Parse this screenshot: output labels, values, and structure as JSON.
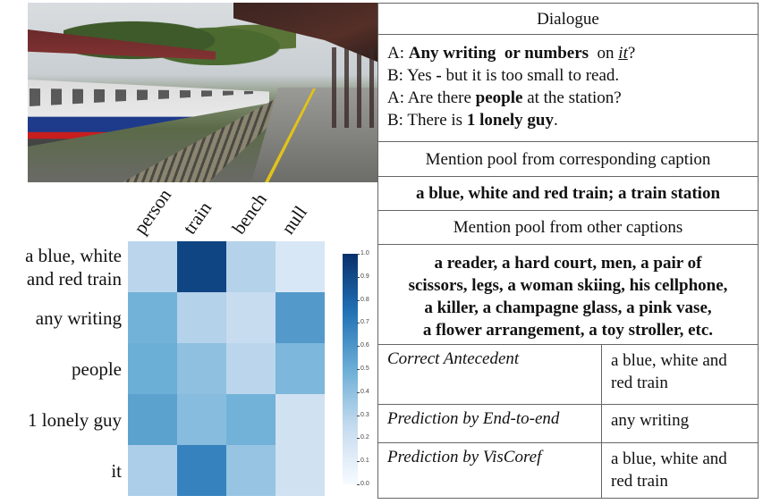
{
  "heatmap": {
    "columns": [
      "person",
      "train",
      "bench",
      "null"
    ],
    "rows": [
      {
        "label": "a blue, white\nand red train",
        "values": [
          0.28,
          0.92,
          0.3,
          0.16
        ]
      },
      {
        "label": "any writing",
        "values": [
          0.48,
          0.3,
          0.24,
          0.58
        ]
      },
      {
        "label": "people",
        "values": [
          0.5,
          0.4,
          0.28,
          0.45
        ]
      },
      {
        "label": "1 lonely guy",
        "values": [
          0.55,
          0.42,
          0.48,
          0.2
        ]
      },
      {
        "label": "it",
        "values": [
          0.32,
          0.68,
          0.38,
          0.2
        ]
      }
    ],
    "colorbar_ticks": [
      "1.0",
      "0.9",
      "0.8",
      "0.7",
      "0.6",
      "0.5",
      "0.4",
      "0.3",
      "0.2",
      "0.1",
      "0.0"
    ]
  },
  "dialogue": {
    "header": "Dialogue",
    "lines": [
      {
        "speaker": "A:",
        "html": "<b>Any writing</b>&nbsp; <b>or numbers</b>&nbsp; on <i><u>it</u></i>?"
      },
      {
        "speaker": "B:",
        "html": "Yes <b>-</b> but it is too small to read."
      },
      {
        "speaker": "A:",
        "html": "Are there <b>people</b> at the station?"
      },
      {
        "speaker": "B:",
        "html": "There is <b>1 lonely guy</b>."
      }
    ]
  },
  "caption_pool": {
    "header": "Mention pool from corresponding caption",
    "text": "a blue, white and red train; a train station"
  },
  "other_pool": {
    "header": "Mention pool from other captions",
    "lines": [
      "a reader, a hard court, men, a pair of",
      "scissors, legs, a woman skiing, his cellphone,",
      "a killer, a champagne glass, a pink vase,",
      "a flower arrangement, a toy stroller, etc."
    ]
  },
  "results": [
    {
      "label": "Correct Antecedent",
      "value": "a blue, white and\nred train"
    },
    {
      "label": "Prediction by End-to-end",
      "value": "any writing"
    },
    {
      "label": "Prediction by VisCoref",
      "value": "a blue, white and\nred train"
    }
  ]
}
